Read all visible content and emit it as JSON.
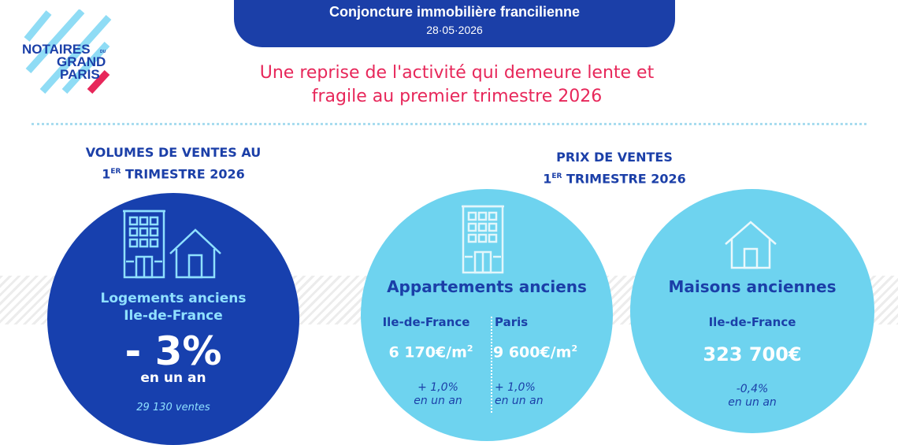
{
  "header": {
    "title": "Conjoncture immobilière francilienne",
    "date": "28·05·2026"
  },
  "logo": {
    "line1": "NOTAIRES",
    "line1_small": "DU",
    "line2": "GRAND",
    "line3": "PARIS"
  },
  "headline": {
    "line1": "Une reprise de l'activité qui demeure lente et",
    "line2": "fragile au premier trimestre 2026"
  },
  "volumes": {
    "heading_line1": "VOLUMES DE VENTES AU",
    "heading_line2_prefix": "1",
    "heading_line2_sup": "ER",
    "heading_line2_rest": " TRIMESTRE 2026",
    "label_line1": "Logements anciens",
    "label_line2": "Ile-de-France",
    "value": "- 3%",
    "period": "en un an",
    "count": "29 130 ventes",
    "icons": [
      "apartment-building-icon",
      "house-icon"
    ]
  },
  "prices": {
    "heading_line1": "PRIX DE VENTES",
    "heading_line2_prefix": "1",
    "heading_line2_sup": "ER",
    "heading_line2_rest": " TRIMESTRE 2026",
    "apartments": {
      "title": "Appartements anciens",
      "icon": "apartment-building-icon",
      "idf_label": "Ile-de-France",
      "idf_price": "6 170€/m",
      "idf_unit_sup": "2",
      "idf_change": "+ 1,0%",
      "idf_period": "en un an",
      "paris_label": "Paris",
      "paris_price": "9 600€/m",
      "paris_unit_sup": "2",
      "paris_change": "+ 1,0%",
      "paris_period": "en un an"
    },
    "houses": {
      "title": "Maisons anciennes",
      "icon": "house-icon",
      "region": "Ile-de-France",
      "price": "323 700€",
      "change": "-0,4%",
      "period": "en un an"
    }
  },
  "colors": {
    "navy": "#1b3fa8",
    "dark_circle": "#1740ae",
    "light_circle": "#6ed3ef",
    "accent_red": "#e7275a",
    "light_blue_text": "#8fe0ff"
  }
}
